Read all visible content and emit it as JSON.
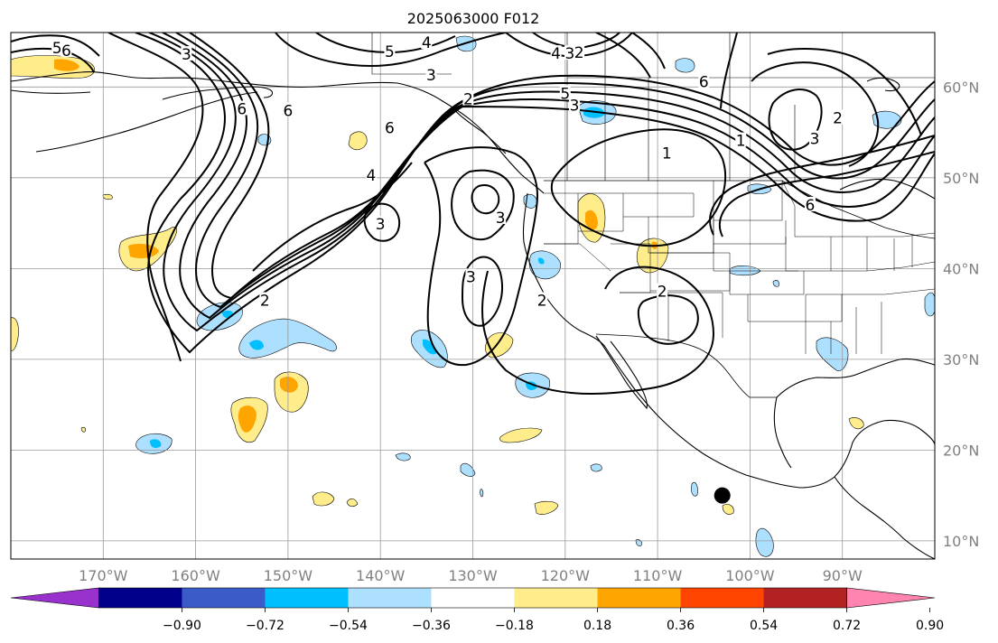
{
  "title": "2025063000 F012",
  "map": {
    "projection": "PlateCarree",
    "lon_range": [
      -180,
      -80
    ],
    "lat_range": [
      8,
      66
    ],
    "gridlines": true,
    "lon_ticks": [
      {
        "lon": -170,
        "label": "170°W"
      },
      {
        "lon": -160,
        "label": "160°W"
      },
      {
        "lon": -150,
        "label": "150°W"
      },
      {
        "lon": -140,
        "label": "140°W"
      },
      {
        "lon": -130,
        "label": "130°W"
      },
      {
        "lon": -120,
        "label": "120°W"
      },
      {
        "lon": -110,
        "label": "110°W"
      },
      {
        "lon": -100,
        "label": "100°W"
      },
      {
        "lon": -90,
        "label": "90°W"
      }
    ],
    "lat_ticks": [
      {
        "lat": 10,
        "label": "10°N"
      },
      {
        "lat": 20,
        "label": "20°N"
      },
      {
        "lat": 30,
        "label": "30°N"
      },
      {
        "lat": 40,
        "label": "40°N"
      },
      {
        "lat": 50,
        "label": "50°N"
      },
      {
        "lat": 60,
        "label": "60°N"
      }
    ],
    "contour_labels": [
      {
        "text": "6",
        "lon": -174,
        "lat": 63.9
      },
      {
        "text": "5",
        "lon": -175,
        "lat": 64.2
      },
      {
        "text": "3",
        "lon": -161,
        "lat": 63.5
      },
      {
        "text": "4",
        "lon": -135,
        "lat": 64.8
      },
      {
        "text": "5",
        "lon": -139,
        "lat": 63.8
      },
      {
        "text": "4",
        "lon": -121,
        "lat": 63.6
      },
      {
        "text": "3",
        "lon": -119.5,
        "lat": 63.6
      },
      {
        "text": "2",
        "lon": -118.5,
        "lat": 63.7
      },
      {
        "text": "2",
        "lon": -130.5,
        "lat": 58.6
      },
      {
        "text": "6",
        "lon": -105,
        "lat": 60.5
      },
      {
        "text": "5",
        "lon": -120,
        "lat": 59.2
      },
      {
        "text": "3",
        "lon": -119,
        "lat": 57.9
      },
      {
        "text": "6",
        "lon": -155,
        "lat": 57.5
      },
      {
        "text": "6",
        "lon": -150,
        "lat": 57.3
      },
      {
        "text": "6",
        "lon": -139,
        "lat": 55.4
      },
      {
        "text": "2",
        "lon": -90.5,
        "lat": 56.5
      },
      {
        "text": "3",
        "lon": -93,
        "lat": 54.2
      },
      {
        "text": "1",
        "lon": -109,
        "lat": 52.6
      },
      {
        "text": "1",
        "lon": -101,
        "lat": 54
      },
      {
        "text": "4",
        "lon": -141,
        "lat": 50.2
      },
      {
        "text": "3",
        "lon": -140,
        "lat": 44.8
      },
      {
        "text": "3",
        "lon": -127,
        "lat": 45.5
      },
      {
        "text": "3",
        "lon": -130.2,
        "lat": 39
      },
      {
        "text": "2",
        "lon": -152.5,
        "lat": 36.4
      },
      {
        "text": "2",
        "lon": -122.5,
        "lat": 36.4
      },
      {
        "text": "6",
        "lon": -93.5,
        "lat": 46.9
      },
      {
        "text": "2",
        "lon": -109.5,
        "lat": 37.4
      },
      {
        "text": "3",
        "lon": -134.5,
        "lat": 61.2
      }
    ],
    "station_marker": {
      "lon": -103,
      "lat": 15
    }
  },
  "colorbar": {
    "colors": [
      "#9932CC",
      "#00008B",
      "#3A5BC8",
      "#00BFFF",
      "#ADDFFF",
      "#FFFFFF",
      "#FFEC8B",
      "#FFA500",
      "#FF4500",
      "#B22222",
      "#FF85B0"
    ],
    "levels": [
      -0.9,
      -0.72,
      -0.54,
      -0.36,
      -0.18,
      0.18,
      0.36,
      0.54,
      0.72,
      0.9
    ],
    "labels": [
      "−0.90",
      "−0.72",
      "−0.54",
      "−0.36",
      "−0.18",
      "0.18",
      "0.36",
      "0.54",
      "0.72",
      "0.90"
    ],
    "extend": "both"
  }
}
